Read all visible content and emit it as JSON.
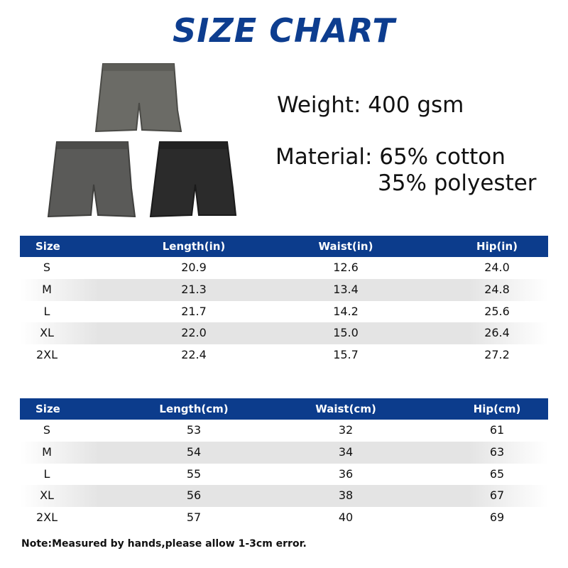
{
  "title": "SIZE CHART",
  "specs": {
    "weight": "Weight: 400 gsm",
    "material": "Material: 65% cotton",
    "material_line2": "35% polyester"
  },
  "tables": [
    {
      "header": [
        "Size",
        "Length(in)",
        "Waist(in)",
        "Hip(in)"
      ],
      "rows": [
        [
          "S",
          "20.9",
          "12.6",
          "24.0"
        ],
        [
          "M",
          "21.3",
          "13.4",
          "24.8"
        ],
        [
          "L",
          "21.7",
          "14.2",
          "25.6"
        ],
        [
          "XL",
          "22.0",
          "15.0",
          "26.4"
        ],
        [
          "2XL",
          "22.4",
          "15.7",
          "27.2"
        ]
      ]
    },
    {
      "header": [
        "Size",
        "Length(cm)",
        "Waist(cm)",
        "Hip(cm)"
      ],
      "rows": [
        [
          "S",
          "53",
          "32",
          "61"
        ],
        [
          "M",
          "54",
          "34",
          "63"
        ],
        [
          "L",
          "55",
          "36",
          "65"
        ],
        [
          "XL",
          "56",
          "38",
          "67"
        ],
        [
          "2XL",
          "57",
          "40",
          "69"
        ]
      ]
    }
  ],
  "note": "Note:Measured by hands,please allow 1-3cm error."
}
